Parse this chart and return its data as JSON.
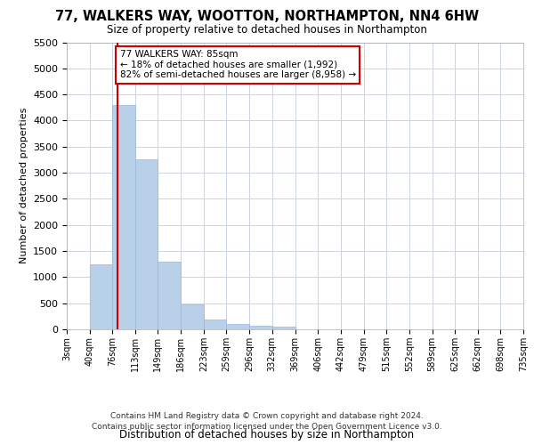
{
  "title_line1": "77, WALKERS WAY, WOOTTON, NORTHAMPTON, NN4 6HW",
  "title_line2": "Size of property relative to detached houses in Northampton",
  "xlabel": "Distribution of detached houses by size in Northampton",
  "ylabel": "Number of detached properties",
  "footer_line1": "Contains HM Land Registry data © Crown copyright and database right 2024.",
  "footer_line2": "Contains public sector information licensed under the Open Government Licence v3.0.",
  "annotation_title": "77 WALKERS WAY: 85sqm",
  "annotation_line1": "← 18% of detached houses are smaller (1,992)",
  "annotation_line2": "82% of semi-detached houses are larger (8,958) →",
  "property_line_x": 85,
  "bar_color": "#b8d0e8",
  "bar_edge_color": "#9ab8d8",
  "line_color": "#cc0000",
  "annotation_box_edge_color": "#cc0000",
  "grid_color": "#ccd4e0",
  "background_color": "#ffffff",
  "ylim_max": 5500,
  "yticks": [
    0,
    500,
    1000,
    1500,
    2000,
    2500,
    3000,
    3500,
    4000,
    4500,
    5000,
    5500
  ],
  "bin_edges": [
    3,
    40,
    76,
    113,
    149,
    186,
    223,
    259,
    296,
    332,
    369,
    406,
    442,
    479,
    515,
    552,
    589,
    625,
    662,
    698,
    735
  ],
  "bar_heights": [
    0,
    1250,
    4300,
    3250,
    1300,
    480,
    195,
    100,
    75,
    55,
    0,
    0,
    0,
    0,
    0,
    0,
    0,
    0,
    0,
    0
  ]
}
